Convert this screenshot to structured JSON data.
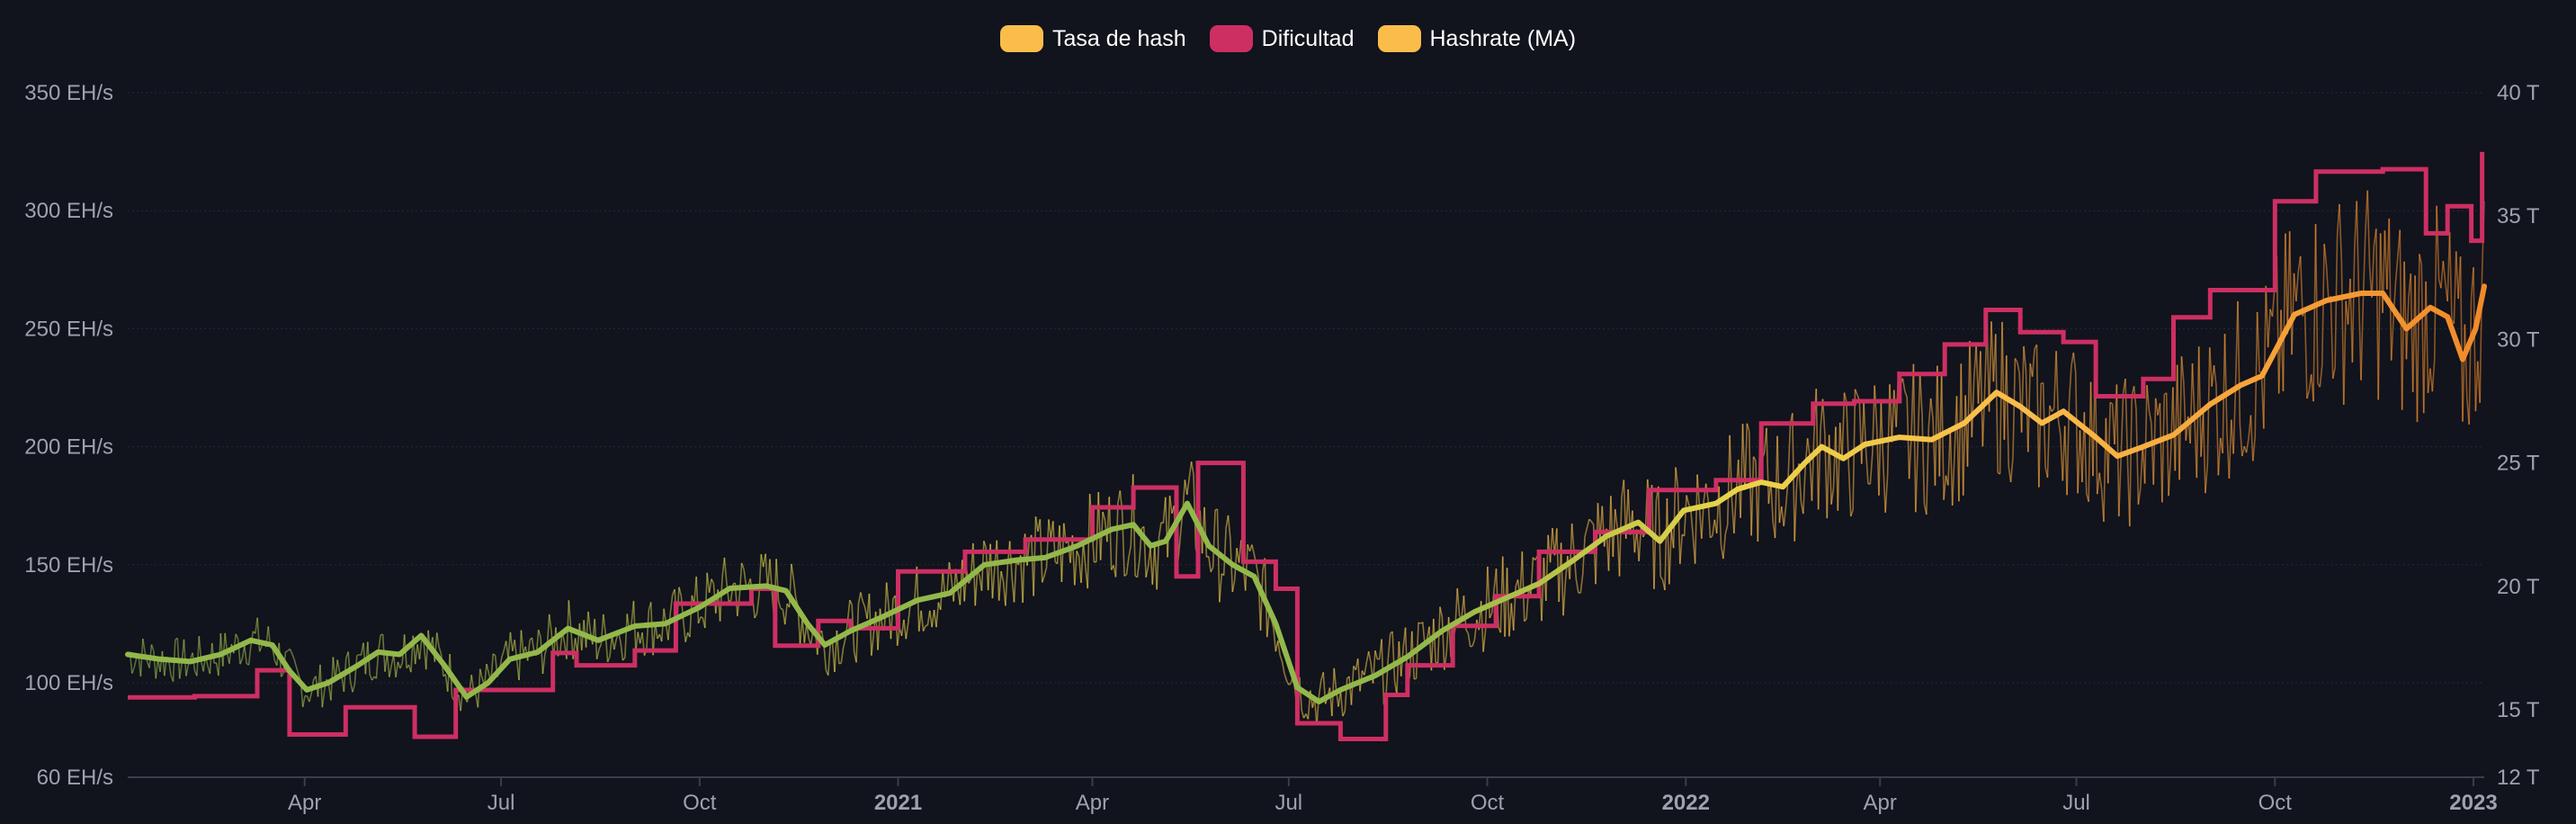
{
  "legend": [
    {
      "label": "Tasa de hash",
      "color": "#fbbd4a"
    },
    {
      "label": "Dificultad",
      "color": "#cd2f63"
    },
    {
      "label": "Hashrate (MA)",
      "color": "#fbbd4a"
    }
  ],
  "chart_data": {
    "type": "line",
    "title": "",
    "legend_position": "top-center",
    "grid": true,
    "x_range": [
      "2020-01-10",
      "2023-01-06"
    ],
    "x_ticks": [
      {
        "label": "Apr",
        "date": "2020-04-01",
        "bold": false
      },
      {
        "label": "Jul",
        "date": "2020-07-01",
        "bold": false
      },
      {
        "label": "Oct",
        "date": "2020-10-01",
        "bold": false
      },
      {
        "label": "2021",
        "date": "2021-01-01",
        "bold": true
      },
      {
        "label": "Apr",
        "date": "2021-04-01",
        "bold": false
      },
      {
        "label": "Jul",
        "date": "2021-07-01",
        "bold": false
      },
      {
        "label": "Oct",
        "date": "2021-10-01",
        "bold": false
      },
      {
        "label": "2022",
        "date": "2022-01-01",
        "bold": true
      },
      {
        "label": "Apr",
        "date": "2022-04-01",
        "bold": false
      },
      {
        "label": "Jul",
        "date": "2022-07-01",
        "bold": false
      },
      {
        "label": "Oct",
        "date": "2022-10-01",
        "bold": false
      },
      {
        "label": "2023",
        "date": "2023-01-01",
        "bold": true
      }
    ],
    "y_left": {
      "unit": "EH/s",
      "ticks": [
        {
          "value": 60,
          "label": "60 EH/s"
        },
        {
          "value": 100,
          "label": "100 EH/s"
        },
        {
          "value": 150,
          "label": "150 EH/s"
        },
        {
          "value": 200,
          "label": "200 EH/s"
        },
        {
          "value": 250,
          "label": "250 EH/s"
        },
        {
          "value": 300,
          "label": "300 EH/s"
        },
        {
          "value": 350,
          "label": "350 EH/s"
        }
      ],
      "piecewise": [
        [
          60,
          100
        ],
        [
          100,
          350
        ]
      ]
    },
    "y_right": {
      "unit": "T",
      "ticks": [
        {
          "value": 12,
          "label": "12 T"
        },
        {
          "value": 15,
          "label": "15 T"
        },
        {
          "value": 20,
          "label": "20 T"
        },
        {
          "value": 25,
          "label": "25 T"
        },
        {
          "value": 30,
          "label": "30 T"
        },
        {
          "value": 35,
          "label": "35 T"
        },
        {
          "value": 40,
          "label": "40 T"
        }
      ]
    },
    "series": [
      {
        "name": "Hashrate (MA)",
        "axis": "left",
        "color_ramp": [
          "#93b84a",
          "#e8d44a",
          "#fbbd4a",
          "#f08a2a"
        ],
        "points": [
          [
            "2020-01-10",
            112
          ],
          [
            "2020-01-25",
            110
          ],
          [
            "2020-02-08",
            109
          ],
          [
            "2020-02-22",
            112
          ],
          [
            "2020-03-07",
            118
          ],
          [
            "2020-03-17",
            116
          ],
          [
            "2020-03-25",
            105
          ],
          [
            "2020-04-02",
            97
          ],
          [
            "2020-04-12",
            100
          ],
          [
            "2020-04-25",
            107
          ],
          [
            "2020-05-05",
            113
          ],
          [
            "2020-05-15",
            112
          ],
          [
            "2020-05-25",
            120
          ],
          [
            "2020-06-05",
            107
          ],
          [
            "2020-06-15",
            94
          ],
          [
            "2020-06-25",
            100
          ],
          [
            "2020-07-05",
            110
          ],
          [
            "2020-07-18",
            113
          ],
          [
            "2020-08-01",
            123
          ],
          [
            "2020-08-15",
            118
          ],
          [
            "2020-09-01",
            124
          ],
          [
            "2020-09-15",
            125
          ],
          [
            "2020-10-01",
            132
          ],
          [
            "2020-10-15",
            140
          ],
          [
            "2020-11-01",
            141
          ],
          [
            "2020-11-10",
            139
          ],
          [
            "2020-11-20",
            125
          ],
          [
            "2020-11-28",
            116
          ],
          [
            "2020-12-10",
            122
          ],
          [
            "2020-12-25",
            128
          ],
          [
            "2021-01-10",
            135
          ],
          [
            "2021-01-25",
            138
          ],
          [
            "2021-02-10",
            150
          ],
          [
            "2021-02-25",
            152
          ],
          [
            "2021-03-10",
            153
          ],
          [
            "2021-03-25",
            158
          ],
          [
            "2021-04-10",
            165
          ],
          [
            "2021-04-20",
            167
          ],
          [
            "2021-04-28",
            158
          ],
          [
            "2021-05-05",
            160
          ],
          [
            "2021-05-15",
            176
          ],
          [
            "2021-05-25",
            158
          ],
          [
            "2021-06-05",
            150
          ],
          [
            "2021-06-15",
            145
          ],
          [
            "2021-06-25",
            125
          ],
          [
            "2021-07-05",
            98
          ],
          [
            "2021-07-15",
            92
          ],
          [
            "2021-07-25",
            97
          ],
          [
            "2021-08-10",
            103
          ],
          [
            "2021-08-25",
            111
          ],
          [
            "2021-09-10",
            122
          ],
          [
            "2021-09-25",
            130
          ],
          [
            "2021-10-10",
            136
          ],
          [
            "2021-10-25",
            142
          ],
          [
            "2021-11-10",
            152
          ],
          [
            "2021-11-25",
            162
          ],
          [
            "2021-12-10",
            168
          ],
          [
            "2021-12-20",
            160
          ],
          [
            "2021-12-31",
            173
          ],
          [
            "2022-01-15",
            176
          ],
          [
            "2022-01-25",
            182
          ],
          [
            "2022-02-05",
            185
          ],
          [
            "2022-02-15",
            183
          ],
          [
            "2022-02-25",
            193
          ],
          [
            "2022-03-05",
            200
          ],
          [
            "2022-03-15",
            195
          ],
          [
            "2022-03-25",
            201
          ],
          [
            "2022-04-10",
            204
          ],
          [
            "2022-04-25",
            203
          ],
          [
            "2022-05-10",
            210
          ],
          [
            "2022-05-25",
            223
          ],
          [
            "2022-06-05",
            217
          ],
          [
            "2022-06-15",
            210
          ],
          [
            "2022-06-25",
            215
          ],
          [
            "2022-07-10",
            204
          ],
          [
            "2022-07-20",
            196
          ],
          [
            "2022-08-01",
            200
          ],
          [
            "2022-08-15",
            205
          ],
          [
            "2022-09-01",
            218
          ],
          [
            "2022-09-15",
            226
          ],
          [
            "2022-09-25",
            230
          ],
          [
            "2022-10-10",
            256
          ],
          [
            "2022-10-25",
            262
          ],
          [
            "2022-11-10",
            265
          ],
          [
            "2022-11-20",
            265
          ],
          [
            "2022-12-01",
            250
          ],
          [
            "2022-12-12",
            259
          ],
          [
            "2022-12-20",
            255
          ],
          [
            "2022-12-27",
            237
          ],
          [
            "2023-01-02",
            250
          ],
          [
            "2023-01-06",
            268
          ]
        ]
      },
      {
        "name": "Dificultad",
        "axis": "right",
        "color": "#cd2f63",
        "step": true,
        "points": [
          [
            "2020-01-10",
            15.5
          ],
          [
            "2020-02-10",
            15.5
          ],
          [
            "2020-02-10",
            15.55
          ],
          [
            "2020-03-10",
            15.55
          ],
          [
            "2020-03-10",
            16.6
          ],
          [
            "2020-03-25",
            16.6
          ],
          [
            "2020-03-25",
            13.9
          ],
          [
            "2020-04-20",
            13.9
          ],
          [
            "2020-04-20",
            15.1
          ],
          [
            "2020-05-22",
            15.1
          ],
          [
            "2020-05-22",
            13.8
          ],
          [
            "2020-06-10",
            13.8
          ],
          [
            "2020-06-10",
            15.8
          ],
          [
            "2020-07-25",
            15.8
          ],
          [
            "2020-07-25",
            17.3
          ],
          [
            "2020-08-05",
            17.3
          ],
          [
            "2020-08-05",
            16.8
          ],
          [
            "2020-09-01",
            16.8
          ],
          [
            "2020-09-01",
            17.4
          ],
          [
            "2020-09-20",
            17.4
          ],
          [
            "2020-09-20",
            19.3
          ],
          [
            "2020-10-25",
            19.3
          ],
          [
            "2020-10-25",
            19.9
          ],
          [
            "2020-11-05",
            19.9
          ],
          [
            "2020-11-05",
            17.6
          ],
          [
            "2020-11-25",
            17.6
          ],
          [
            "2020-11-25",
            18.6
          ],
          [
            "2020-12-10",
            18.6
          ],
          [
            "2020-12-10",
            18.3
          ],
          [
            "2021-01-01",
            18.3
          ],
          [
            "2021-01-01",
            20.6
          ],
          [
            "2021-02-01",
            20.6
          ],
          [
            "2021-02-01",
            21.4
          ],
          [
            "2021-03-01",
            21.4
          ],
          [
            "2021-03-01",
            21.9
          ],
          [
            "2021-04-01",
            21.9
          ],
          [
            "2021-04-01",
            23.2
          ],
          [
            "2021-04-20",
            23.2
          ],
          [
            "2021-04-20",
            24.0
          ],
          [
            "2021-05-10",
            24.0
          ],
          [
            "2021-05-10",
            20.4
          ],
          [
            "2021-05-20",
            20.4
          ],
          [
            "2021-05-20",
            25.0
          ],
          [
            "2021-06-10",
            25.0
          ],
          [
            "2021-06-10",
            21.0
          ],
          [
            "2021-06-25",
            21.0
          ],
          [
            "2021-06-25",
            19.9
          ],
          [
            "2021-07-05",
            19.9
          ],
          [
            "2021-07-05",
            14.4
          ],
          [
            "2021-07-25",
            14.4
          ],
          [
            "2021-07-25",
            13.7
          ],
          [
            "2021-08-15",
            13.7
          ],
          [
            "2021-08-15",
            15.6
          ],
          [
            "2021-08-25",
            15.6
          ],
          [
            "2021-08-25",
            16.8
          ],
          [
            "2021-09-15",
            16.8
          ],
          [
            "2021-09-15",
            18.4
          ],
          [
            "2021-10-05",
            18.4
          ],
          [
            "2021-10-05",
            19.6
          ],
          [
            "2021-10-25",
            19.6
          ],
          [
            "2021-10-25",
            21.4
          ],
          [
            "2021-11-20",
            21.4
          ],
          [
            "2021-11-20",
            22.2
          ],
          [
            "2021-12-15",
            22.2
          ],
          [
            "2021-12-15",
            23.9
          ],
          [
            "2022-01-15",
            23.9
          ],
          [
            "2022-01-15",
            24.3
          ],
          [
            "2022-02-05",
            24.3
          ],
          [
            "2022-02-05",
            26.6
          ],
          [
            "2022-03-01",
            26.6
          ],
          [
            "2022-03-01",
            27.4
          ],
          [
            "2022-03-20",
            27.4
          ],
          [
            "2022-03-20",
            27.5
          ],
          [
            "2022-04-10",
            27.5
          ],
          [
            "2022-04-10",
            28.6
          ],
          [
            "2022-05-01",
            28.6
          ],
          [
            "2022-05-01",
            29.8
          ],
          [
            "2022-05-20",
            29.8
          ],
          [
            "2022-05-20",
            31.2
          ],
          [
            "2022-06-05",
            31.2
          ],
          [
            "2022-06-05",
            30.3
          ],
          [
            "2022-06-25",
            30.3
          ],
          [
            "2022-06-25",
            29.9
          ],
          [
            "2022-07-10",
            29.9
          ],
          [
            "2022-07-10",
            27.7
          ],
          [
            "2022-08-01",
            27.7
          ],
          [
            "2022-08-01",
            28.4
          ],
          [
            "2022-08-15",
            28.4
          ],
          [
            "2022-08-15",
            30.9
          ],
          [
            "2022-09-01",
            30.9
          ],
          [
            "2022-09-01",
            32.0
          ],
          [
            "2022-09-20",
            32.0
          ],
          [
            "2022-09-20",
            32.0
          ],
          [
            "2022-10-01",
            32.0
          ],
          [
            "2022-10-01",
            35.6
          ],
          [
            "2022-10-20",
            35.6
          ],
          [
            "2022-10-20",
            36.8
          ],
          [
            "2022-11-20",
            36.8
          ],
          [
            "2022-11-20",
            36.9
          ],
          [
            "2022-12-10",
            36.9
          ],
          [
            "2022-12-10",
            34.3
          ],
          [
            "2022-12-20",
            34.3
          ],
          [
            "2022-12-20",
            35.4
          ],
          [
            "2022-12-31",
            35.4
          ],
          [
            "2022-12-31",
            34.0
          ],
          [
            "2023-01-05",
            34.0
          ],
          [
            "2023-01-05",
            37.6
          ]
        ]
      }
    ]
  }
}
